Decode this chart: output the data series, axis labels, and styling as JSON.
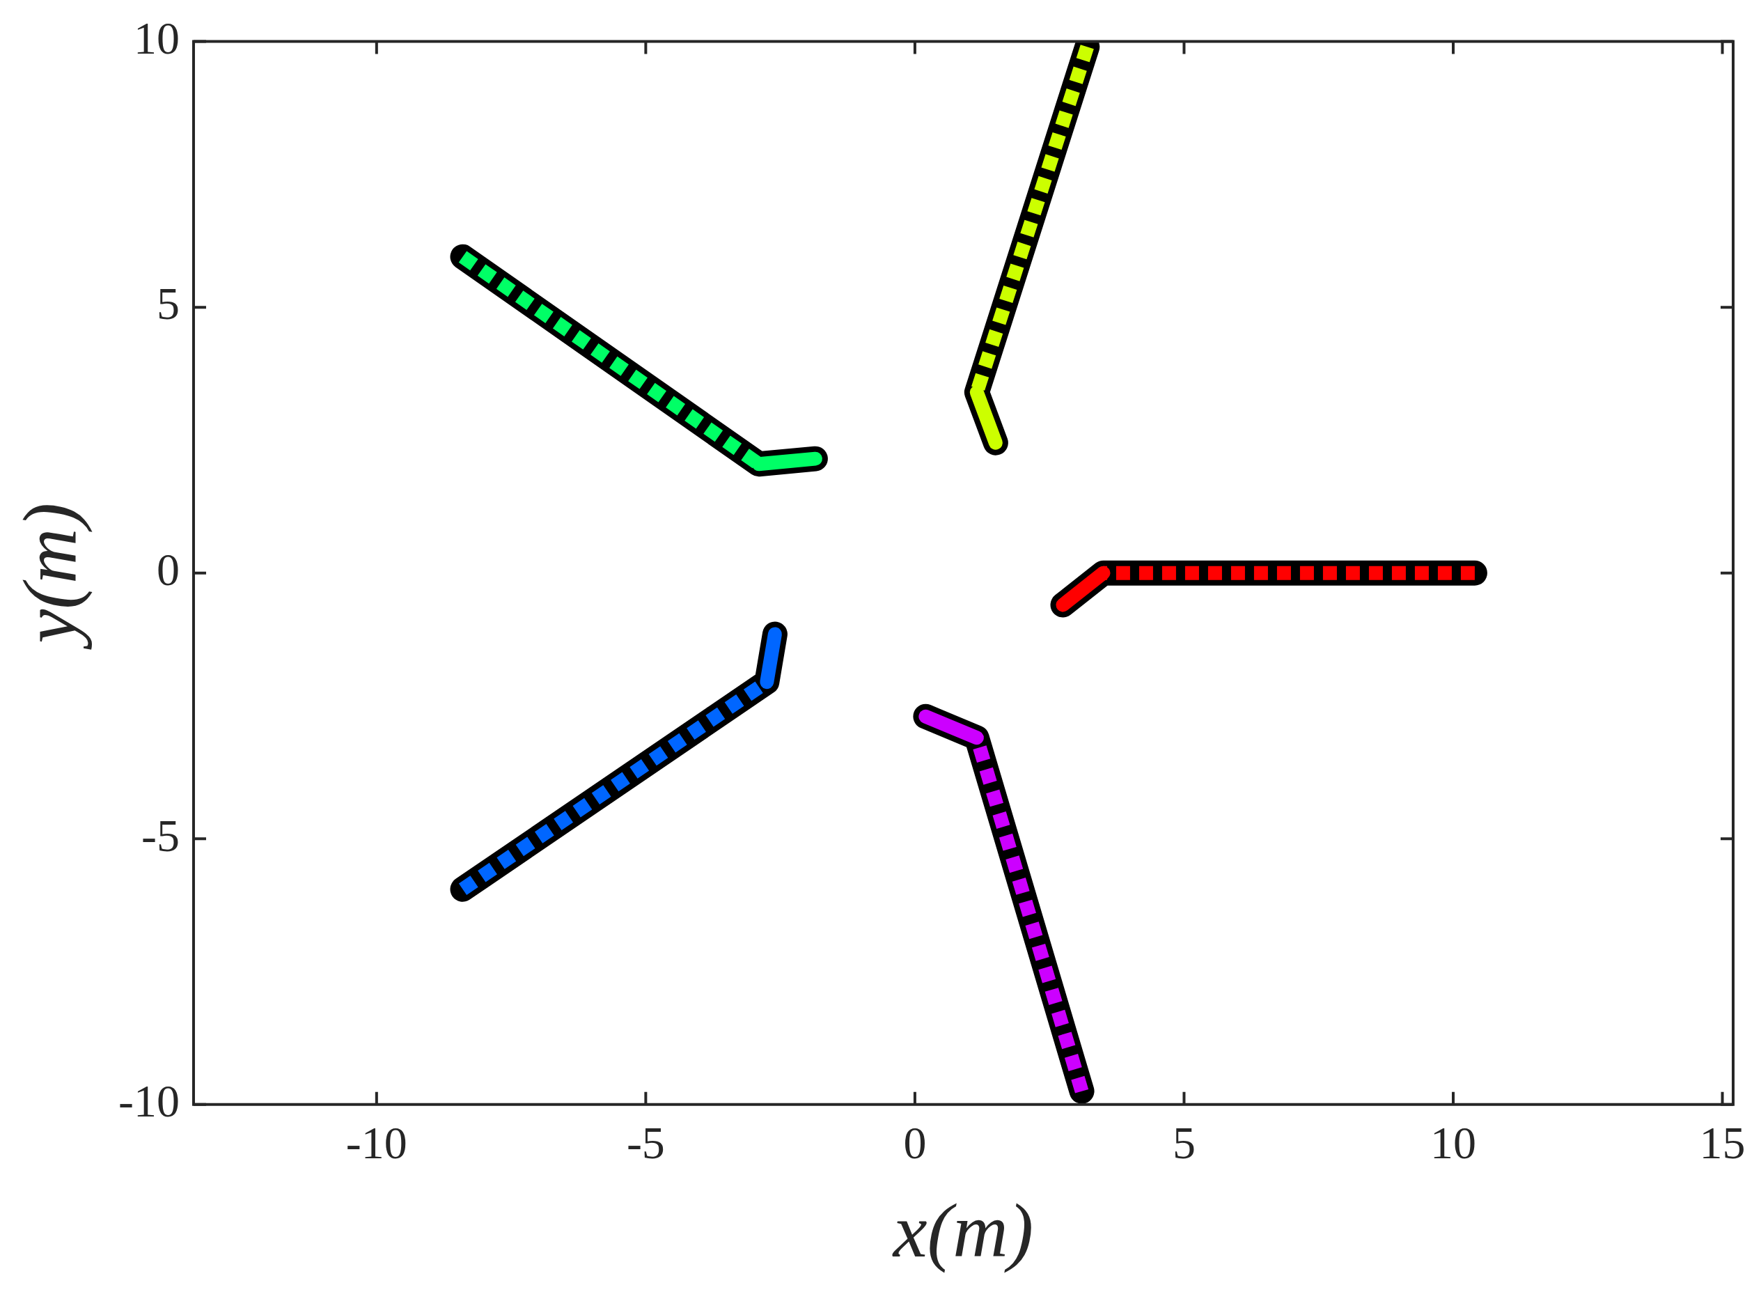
{
  "chart_data": {
    "type": "line",
    "xlabel": "x(m)",
    "ylabel": "y(m)",
    "xlim": [
      -13.4,
      15.2
    ],
    "ylim": [
      -10,
      10
    ],
    "xticks": [
      -10,
      -5,
      0,
      5,
      10,
      15
    ],
    "yticks": [
      -10,
      -5,
      0,
      5,
      10
    ],
    "grid": false,
    "legend": false,
    "marker": "none",
    "series": [
      {
        "color": "#000000",
        "line_style": "solid",
        "x": [
          10.4,
          3.5,
          2.75
        ],
        "values": [
          0,
          0,
          -0.6
        ]
      },
      {
        "color": "#000000",
        "line_style": "solid",
        "x": [
          3.2,
          1.15,
          1.5
        ],
        "values": [
          9.9,
          3.4,
          2.45
        ]
      },
      {
        "color": "#000000",
        "line_style": "solid",
        "x": [
          -8.4,
          -2.9,
          -1.85
        ],
        "values": [
          5.95,
          2.05,
          2.15
        ]
      },
      {
        "color": "#000000",
        "line_style": "solid",
        "x": [
          -8.4,
          -2.75,
          -2.6
        ],
        "values": [
          -5.95,
          -2.05,
          -1.15
        ]
      },
      {
        "color": "#000000",
        "line_style": "solid",
        "x": [
          3.1,
          1.15,
          0.2
        ],
        "values": [
          -9.75,
          -3.1,
          -2.7
        ]
      },
      {
        "color": "#ff0000",
        "line_style": "dashed",
        "x": [
          10.4,
          3.5
        ],
        "values": [
          0,
          0
        ]
      },
      {
        "color": "#ff0000",
        "line_style": "solid",
        "x": [
          3.5,
          2.75
        ],
        "values": [
          0,
          -0.6
        ]
      },
      {
        "color": "#ccff00",
        "line_style": "dashed",
        "x": [
          3.2,
          1.15
        ],
        "values": [
          9.9,
          3.4
        ]
      },
      {
        "color": "#ccff00",
        "line_style": "solid",
        "x": [
          1.15,
          1.5
        ],
        "values": [
          3.4,
          2.45
        ]
      },
      {
        "color": "#00ff66",
        "line_style": "dashed",
        "x": [
          -8.4,
          -2.9
        ],
        "values": [
          5.95,
          2.05
        ]
      },
      {
        "color": "#00ff66",
        "line_style": "solid",
        "x": [
          -2.9,
          -1.85
        ],
        "values": [
          2.05,
          2.15
        ]
      },
      {
        "color": "#0066ff",
        "line_style": "dashed",
        "x": [
          -8.4,
          -2.75
        ],
        "values": [
          -5.95,
          -2.05
        ]
      },
      {
        "color": "#0066ff",
        "line_style": "solid",
        "x": [
          -2.75,
          -2.6
        ],
        "values": [
          -2.05,
          -1.15
        ]
      },
      {
        "color": "#cc00ff",
        "line_style": "dashed",
        "x": [
          3.1,
          1.15
        ],
        "values": [
          -9.75,
          -3.1
        ]
      },
      {
        "color": "#cc00ff",
        "line_style": "solid",
        "x": [
          1.15,
          0.2
        ],
        "values": [
          -3.1,
          -2.7
        ]
      }
    ]
  }
}
